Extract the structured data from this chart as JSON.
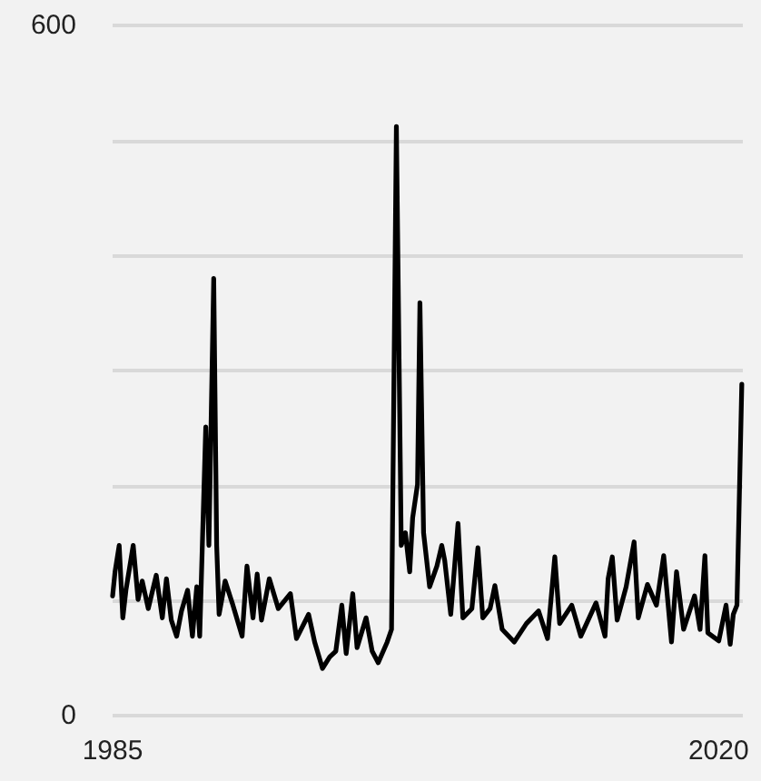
{
  "chart_data": {
    "type": "line",
    "x": [
      1985.0,
      1985.14,
      1985.38,
      1985.59,
      1985.77,
      1986.19,
      1986.47,
      1986.71,
      1987.06,
      1987.52,
      1987.87,
      1988.11,
      1988.39,
      1988.7,
      1988.98,
      1989.33,
      1989.61,
      1989.86,
      1990.03,
      1990.38,
      1990.56,
      1990.84,
      1991.01,
      1991.15,
      1991.5,
      1991.95,
      1992.48,
      1992.76,
      1993.11,
      1993.35,
      1993.6,
      1994.05,
      1994.57,
      1995.27,
      1995.62,
      1996.32,
      1996.67,
      1997.12,
      1997.54,
      1997.89,
      1998.24,
      1998.49,
      1998.87,
      1999.12,
      1999.64,
      1999.99,
      2000.34,
      2000.86,
      2001.11,
      2001.39,
      2001.67,
      2001.91,
      2002.16,
      2002.33,
      2002.61,
      2002.75,
      2002.96,
      2003.31,
      2003.73,
      2004.01,
      2004.18,
      2004.53,
      2004.95,
      2005.23,
      2005.75,
      2006.1,
      2006.38,
      2006.8,
      2007.08,
      2007.5,
      2008.2,
      2008.9,
      2009.6,
      2010.12,
      2010.54,
      2010.82,
      2011.52,
      2012.04,
      2012.92,
      2013.44,
      2013.62,
      2013.86,
      2014.14,
      2014.66,
      2015.12,
      2015.36,
      2015.89,
      2016.41,
      2016.83,
      2017.28,
      2017.57,
      2017.98,
      2018.61,
      2018.93,
      2019.21,
      2019.38,
      2020.01,
      2020.43,
      2020.67,
      2020.85,
      2021.06,
      2021.34
    ],
    "series": [
      {
        "color": "#000000",
        "values": [
          104,
          125,
          148,
          85,
          109,
          148,
          101,
          117,
          93,
          122,
          85,
          119,
          83,
          69,
          91,
          109,
          69,
          112,
          69,
          251,
          148,
          380,
          148,
          88,
          117,
          96,
          69,
          130,
          85,
          123,
          83,
          119,
          93,
          106,
          67,
          88,
          64,
          41,
          51,
          56,
          96,
          54,
          106,
          59,
          85,
          56,
          46,
          64,
          75,
          512,
          148,
          159,
          125,
          172,
          201,
          359,
          159,
          112,
          130,
          148,
          135,
          88,
          167,
          85,
          93,
          146,
          85,
          93,
          113,
          75,
          64,
          80,
          91,
          67,
          138,
          80,
          96,
          69,
          98,
          69,
          119,
          138,
          83,
          112,
          151,
          85,
          114,
          96,
          139,
          64,
          125,
          75,
          104,
          75,
          139,
          72,
          65,
          96,
          62,
          88,
          96,
          288
        ]
      }
    ],
    "xlim": [
      1985,
      2021.4
    ],
    "xticks": [
      1985,
      2020
    ],
    "ylim": [
      0,
      600
    ],
    "yticks": [
      0,
      {
        "value": 100,
        "label": null
      },
      {
        "value": 200,
        "label": null
      },
      {
        "value": 300,
        "label": null
      },
      {
        "value": 400,
        "label": null
      },
      {
        "value": 500,
        "label": null
      },
      600
    ],
    "grid": "y",
    "marker": "none",
    "line_style": "solid"
  }
}
